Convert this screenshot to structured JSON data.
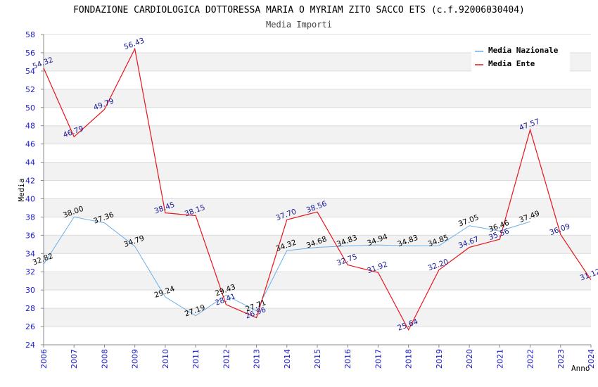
{
  "chart_data": {
    "type": "line",
    "title": "FONDAZIONE CARDIOLOGICA DOTTORESSA MARIA O MYRIAM ZITO SACCO ETS (c.f.92006030404)",
    "subtitle": "Media Importi",
    "xlabel": "Anno",
    "ylabel": "Media",
    "ylim": [
      24,
      58
    ],
    "ytick_step": 2,
    "grid": true,
    "legend_position": "top-right",
    "categories": [
      "2006",
      "2007",
      "2008",
      "2009",
      "2010",
      "2011",
      "2012",
      "2013",
      "2014",
      "2015",
      "2016",
      "2017",
      "2018",
      "2019",
      "2020",
      "2021",
      "2022",
      "2023",
      "2024"
    ],
    "series": [
      {
        "name": "Media Nazionale",
        "color": "#6aaee8",
        "label_color": "#000000",
        "values": [
          32.82,
          38.0,
          37.36,
          34.79,
          29.24,
          27.19,
          29.43,
          27.71,
          34.32,
          34.68,
          34.83,
          34.94,
          34.83,
          34.85,
          37.05,
          36.46,
          37.49,
          null,
          null
        ],
        "labels": [
          "32.82",
          "38.00",
          "37.36",
          "34.79",
          "29.24",
          "27.19",
          "29.43",
          "27.71",
          "34.32",
          "34.68",
          "34.83",
          "34.94",
          "34.83",
          "34.85",
          "37.05",
          "36.46",
          "37.49",
          "",
          ""
        ]
      },
      {
        "name": "Media Ente",
        "color": "#e8141c",
        "label_color": "#1a1a99",
        "values": [
          54.32,
          46.79,
          49.79,
          56.43,
          38.45,
          38.15,
          28.41,
          26.96,
          37.7,
          38.56,
          32.75,
          31.92,
          25.64,
          32.2,
          34.67,
          35.56,
          47.57,
          36.09,
          31.12
        ],
        "labels": [
          "54.32",
          "46.79",
          "49.79",
          "56.43",
          "38.45",
          "38.15",
          "28.41",
          "26.96",
          "37.70",
          "38.56",
          "32.75",
          "31.92",
          "25.64",
          "32.20",
          "34.67",
          "35.56",
          "47.57",
          "36.09",
          "31.12"
        ]
      }
    ]
  }
}
